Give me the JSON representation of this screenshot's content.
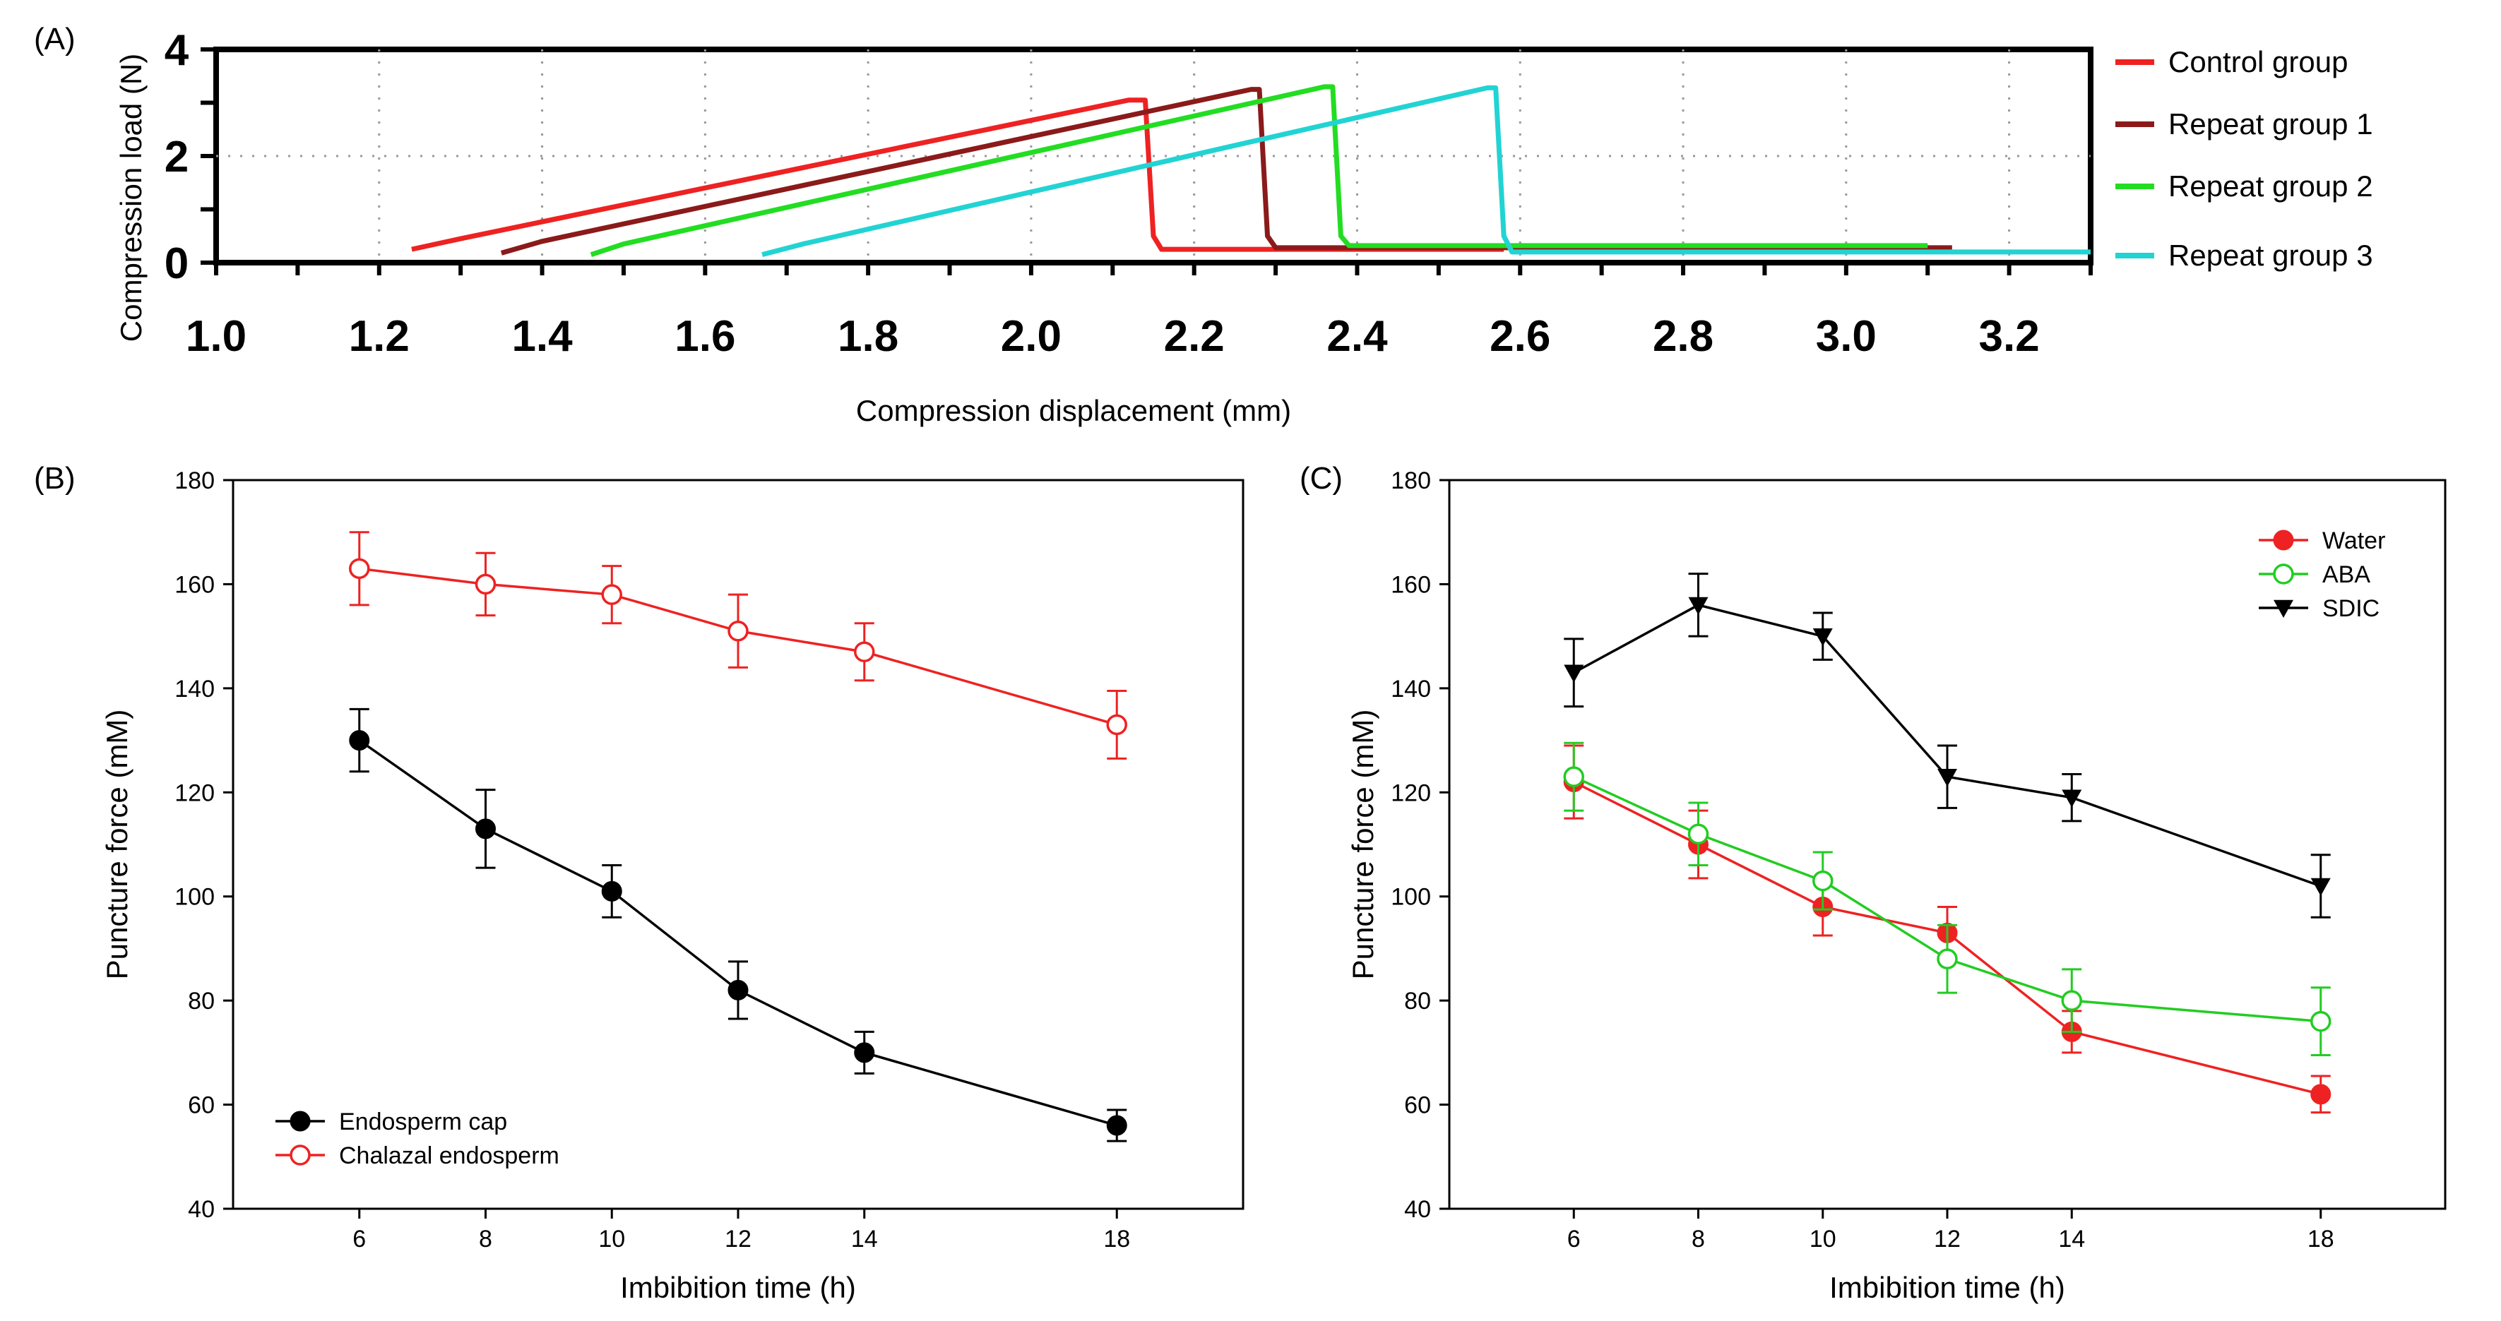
{
  "chart_data": [
    {
      "panel": "(A)",
      "type": "line",
      "xlabel": "Compression displacement (mm)",
      "ylabel": "Compression load (N)",
      "xlim": [
        1.0,
        3.3
      ],
      "ylim": [
        0,
        4
      ],
      "x_ticks": [
        "1.0",
        "1.2",
        "1.4",
        "1.6",
        "1.8",
        "2.0",
        "2.2",
        "2.4",
        "2.6",
        "2.8",
        "3.0",
        "3.2"
      ],
      "y_ticks": [
        "0",
        "2",
        "4"
      ],
      "grid": "dotted",
      "legend_position": "right",
      "series": [
        {
          "name": "Control group",
          "color": "#ee2222",
          "x": [
            1.24,
            1.3,
            2.12,
            2.14,
            2.15,
            2.16,
            2.58
          ],
          "y": [
            0.25,
            0.45,
            3.05,
            3.05,
            0.5,
            0.25,
            0.25
          ]
        },
        {
          "name": "Repeat group 1",
          "color": "#8b1a1a",
          "x": [
            1.35,
            1.4,
            2.27,
            2.28,
            2.29,
            2.3,
            3.13
          ],
          "y": [
            0.18,
            0.4,
            3.25,
            3.25,
            0.5,
            0.28,
            0.28
          ]
        },
        {
          "name": "Repeat group 2",
          "color": "#22dd22",
          "x": [
            1.46,
            1.5,
            2.36,
            2.37,
            2.38,
            2.39,
            3.1
          ],
          "y": [
            0.15,
            0.35,
            3.3,
            3.3,
            0.5,
            0.32,
            0.32
          ]
        },
        {
          "name": "Repeat group 3",
          "color": "#22d3d3",
          "x": [
            1.67,
            1.72,
            2.56,
            2.57,
            2.58,
            2.59,
            3.3
          ],
          "y": [
            0.15,
            0.35,
            3.28,
            3.28,
            0.5,
            0.2,
            0.2
          ]
        }
      ]
    },
    {
      "panel": "(B)",
      "type": "line",
      "xlabel": "Imbibition time (h)",
      "ylabel": "Puncture force (mM)",
      "x": [
        6,
        8,
        10,
        12,
        14,
        18
      ],
      "xlim": [
        4,
        20
      ],
      "ylim": [
        40,
        180
      ],
      "y_ticks": [
        "40",
        "60",
        "80",
        "100",
        "120",
        "140",
        "160",
        "180"
      ],
      "legend_position": "bottom-left",
      "series": [
        {
          "name": "Endosperm cap",
          "color": "#000000",
          "marker": "filled-circle",
          "values": [
            130,
            113,
            101,
            82,
            70,
            56
          ],
          "errors": [
            6,
            7.5,
            5,
            5.5,
            4,
            3
          ]
        },
        {
          "name": "Chalazal endosperm",
          "color": "#ee2222",
          "marker": "open-circle",
          "values": [
            163,
            160,
            158,
            151,
            147,
            133
          ],
          "errors": [
            7,
            6,
            5.5,
            7,
            5.5,
            6.5
          ]
        }
      ]
    },
    {
      "panel": "(C)",
      "type": "line",
      "xlabel": "Imbibition time (h)",
      "ylabel": "Puncture force (mM)",
      "x": [
        6,
        8,
        10,
        12,
        14,
        18
      ],
      "xlim": [
        4,
        20
      ],
      "ylim": [
        40,
        180
      ],
      "y_ticks": [
        "40",
        "60",
        "80",
        "100",
        "120",
        "140",
        "160",
        "180"
      ],
      "legend_position": "top-right",
      "series": [
        {
          "name": "Water",
          "color": "#ee2222",
          "marker": "filled-circle",
          "values": [
            122,
            110,
            98,
            93,
            74,
            62
          ],
          "errors": [
            7,
            6.5,
            5.5,
            5,
            4,
            3.5
          ]
        },
        {
          "name": "ABA",
          "color": "#22cc22",
          "marker": "open-circle",
          "values": [
            123,
            112,
            103,
            88,
            80,
            76
          ],
          "errors": [
            6.5,
            6,
            5.5,
            6.5,
            6,
            6.5
          ]
        },
        {
          "name": "SDIC",
          "color": "#000000",
          "marker": "filled-triangle-down",
          "values": [
            143,
            156,
            150,
            123,
            119,
            102
          ],
          "errors": [
            6.5,
            6,
            4.5,
            6,
            4.5,
            6
          ]
        }
      ]
    }
  ]
}
